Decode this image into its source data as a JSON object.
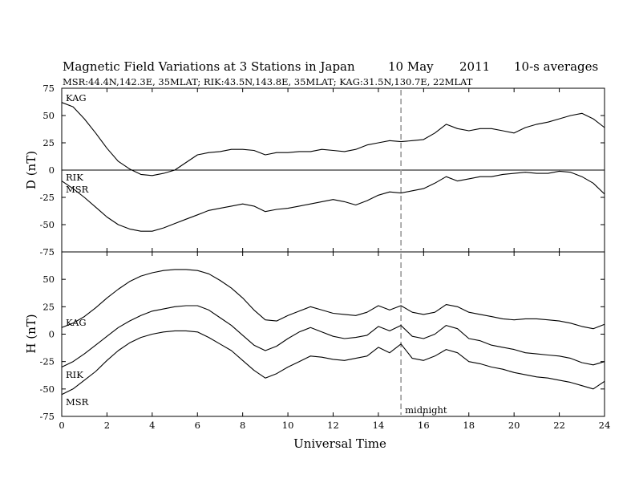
{
  "chart_data": [
    {
      "type": "line",
      "panel": "top",
      "title": "Magnetic Field Variations at 3 Stations in Japan",
      "date_text": "10 May",
      "year_text": "2011",
      "avg_text": "10-s averages",
      "subtitle": "MSR:44.4N,142.3E, 35MLAT;  RIK:43.5N,143.8E, 35MLAT;  KAG:31.5N,130.7E, 22MLAT",
      "xlabel": "Universal Time",
      "ylabel": "D (nT)",
      "xlim": [
        0,
        24
      ],
      "ylim": [
        -75,
        75
      ],
      "x_ticks": [
        "0",
        "2",
        "4",
        "6",
        "8",
        "10",
        "12",
        "14",
        "16",
        "18",
        "20",
        "22",
        "24"
      ],
      "y_ticks": [
        "75",
        "50",
        "25",
        "0",
        "-25",
        "-50",
        "-75"
      ],
      "zero_line": true,
      "series": [
        {
          "name": "KAG",
          "x": [
            0,
            0.5,
            1,
            1.5,
            2,
            2.5,
            3,
            3.5,
            4,
            4.5,
            5,
            5.5,
            6,
            6.5,
            7,
            7.5,
            8,
            8.5,
            9,
            9.5,
            10,
            10.5,
            11,
            11.5,
            12,
            12.5,
            13,
            13.5,
            14,
            14.5,
            15,
            15.5,
            16,
            16.5,
            17,
            17.5,
            18,
            18.5,
            19,
            19.5,
            20,
            20.5,
            21,
            21.5,
            22,
            22.5,
            23,
            23.5,
            24
          ],
          "values": [
            62,
            58,
            47,
            34,
            20,
            8,
            1,
            -4,
            -5,
            -3,
            0,
            7,
            14,
            16,
            17,
            19,
            19,
            18,
            14,
            16,
            16,
            17,
            17,
            19,
            18,
            17,
            19,
            23,
            25,
            27,
            26,
            27,
            28,
            34,
            42,
            38,
            36,
            38,
            38,
            36,
            34,
            39,
            42,
            44,
            47,
            50,
            52,
            47,
            39
          ]
        },
        {
          "name": "RIK",
          "x": [
            0,
            0.5,
            1,
            1.5,
            2,
            2.5,
            3,
            3.5,
            4,
            4.5,
            5,
            5.5,
            6,
            6.5,
            7,
            7.5,
            8,
            8.5,
            9,
            9.5,
            10,
            10.5,
            11,
            11.5,
            12,
            12.5,
            13,
            13.5,
            14,
            14.5,
            15,
            15.5,
            16,
            16.5,
            17,
            17.5,
            18,
            18.5,
            19,
            19.5,
            20,
            20.5,
            21,
            21.5,
            22,
            22.5,
            23,
            23.5,
            24
          ],
          "values": [
            -10,
            -17,
            -25,
            -34,
            -43,
            -50,
            -54,
            -56,
            -56,
            -53,
            -49,
            -45,
            -41,
            -37,
            -35,
            -33,
            -31,
            -33,
            -38,
            -36,
            -35,
            -33,
            -31,
            -29,
            -27,
            -29,
            -32,
            -28,
            -23,
            -20,
            -21,
            -19,
            -17,
            -12,
            -6,
            -10,
            -8,
            -6,
            -6,
            -4,
            -3,
            -2,
            -3,
            -3,
            -1,
            -2,
            -6,
            -12,
            -22
          ]
        }
      ],
      "labels": [
        "KAG",
        "RIK",
        "MSR"
      ]
    },
    {
      "type": "line",
      "panel": "bottom",
      "xlabel": "Universal Time",
      "ylabel": "H (nT)",
      "xlim": [
        0,
        24
      ],
      "ylim": [
        -75,
        75
      ],
      "x_ticks": [
        "0",
        "2",
        "4",
        "6",
        "8",
        "10",
        "12",
        "14",
        "16",
        "18",
        "20",
        "22",
        "24"
      ],
      "y_ticks": [
        "50",
        "25",
        "0",
        "-25",
        "-50",
        "-75"
      ],
      "series": [
        {
          "name": "KAG",
          "x": [
            0,
            0.5,
            1,
            1.5,
            2,
            2.5,
            3,
            3.5,
            4,
            4.5,
            5,
            5.5,
            6,
            6.5,
            7,
            7.5,
            8,
            8.5,
            9,
            9.5,
            10,
            10.5,
            11,
            11.5,
            12,
            12.5,
            13,
            13.5,
            14,
            14.5,
            15,
            15.5,
            16,
            16.5,
            17,
            17.5,
            18,
            18.5,
            19,
            19.5,
            20,
            20.5,
            21,
            21.5,
            22,
            22.5,
            23,
            23.5,
            24
          ],
          "values": [
            6,
            10,
            16,
            24,
            33,
            41,
            48,
            53,
            56,
            58,
            59,
            59,
            58,
            55,
            49,
            42,
            33,
            22,
            13,
            12,
            17,
            21,
            25,
            22,
            19,
            18,
            17,
            20,
            26,
            22,
            26,
            20,
            18,
            20,
            27,
            25,
            20,
            18,
            16,
            14,
            13,
            14,
            14,
            13,
            12,
            10,
            7,
            5,
            9
          ]
        },
        {
          "name": "RIK",
          "x": [
            0,
            0.5,
            1,
            1.5,
            2,
            2.5,
            3,
            3.5,
            4,
            4.5,
            5,
            5.5,
            6,
            6.5,
            7,
            7.5,
            8,
            8.5,
            9,
            9.5,
            10,
            10.5,
            11,
            11.5,
            12,
            12.5,
            13,
            13.5,
            14,
            14.5,
            15,
            15.5,
            16,
            16.5,
            17,
            17.5,
            18,
            18.5,
            19,
            19.5,
            20,
            20.5,
            21,
            21.5,
            22,
            22.5,
            23,
            23.5,
            24
          ],
          "values": [
            -30,
            -25,
            -18,
            -10,
            -2,
            6,
            12,
            17,
            21,
            23,
            25,
            26,
            26,
            22,
            15,
            8,
            -1,
            -10,
            -15,
            -11,
            -4,
            2,
            6,
            2,
            -2,
            -4,
            -3,
            -1,
            7,
            3,
            8,
            -2,
            -4,
            0,
            8,
            5,
            -4,
            -6,
            -10,
            -12,
            -14,
            -17,
            -18,
            -19,
            -20,
            -22,
            -26,
            -28,
            -25
          ]
        },
        {
          "name": "MSR",
          "x": [
            0,
            0.5,
            1,
            1.5,
            2,
            2.5,
            3,
            3.5,
            4,
            4.5,
            5,
            5.5,
            6,
            6.5,
            7,
            7.5,
            8,
            8.5,
            9,
            9.5,
            10,
            10.5,
            11,
            11.5,
            12,
            12.5,
            13,
            13.5,
            14,
            14.5,
            15,
            15.5,
            16,
            16.5,
            17,
            17.5,
            18,
            18.5,
            19,
            19.5,
            20,
            20.5,
            21,
            21.5,
            22,
            22.5,
            23,
            23.5,
            24
          ],
          "values": [
            -55,
            -50,
            -42,
            -34,
            -24,
            -15,
            -8,
            -3,
            0,
            2,
            3,
            3,
            2,
            -3,
            -9,
            -15,
            -24,
            -33,
            -40,
            -36,
            -30,
            -25,
            -20,
            -21,
            -23,
            -24,
            -22,
            -20,
            -12,
            -17,
            -9,
            -22,
            -24,
            -20,
            -14,
            -17,
            -25,
            -27,
            -30,
            -32,
            -35,
            -37,
            -39,
            -40,
            -42,
            -44,
            -47,
            -50,
            -43
          ]
        }
      ],
      "labels": [
        "KAG",
        "RIK",
        "MSR"
      ],
      "midnight_line_x": 15,
      "midnight_label": "midnight"
    }
  ]
}
